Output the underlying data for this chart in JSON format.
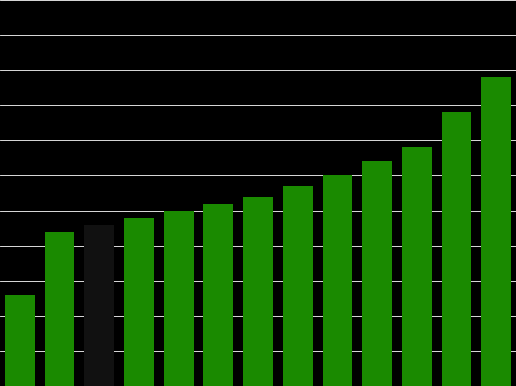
{
  "values": [
    10.8,
    11.7,
    11.8,
    11.9,
    12.0,
    12.1,
    12.2,
    12.35,
    12.5,
    12.7,
    12.9,
    13.4,
    13.9
  ],
  "bar_colors": [
    "#1a8a00",
    "#1a8a00",
    "#111111",
    "#1a8a00",
    "#1a8a00",
    "#1a8a00",
    "#1a8a00",
    "#1a8a00",
    "#1a8a00",
    "#1a8a00",
    "#1a8a00",
    "#1a8a00",
    "#1a8a00"
  ],
  "background_color": "#000000",
  "grid_color": "#ffffff",
  "ylim": [
    9.5,
    15.0
  ],
  "yticks": [
    9.5,
    10.0,
    10.5,
    11.0,
    11.5,
    12.0,
    12.5,
    13.0,
    13.5,
    14.0,
    14.5,
    15.0
  ],
  "bar_width": 0.75,
  "figsize": [
    5.16,
    3.86
  ],
  "dpi": 100
}
